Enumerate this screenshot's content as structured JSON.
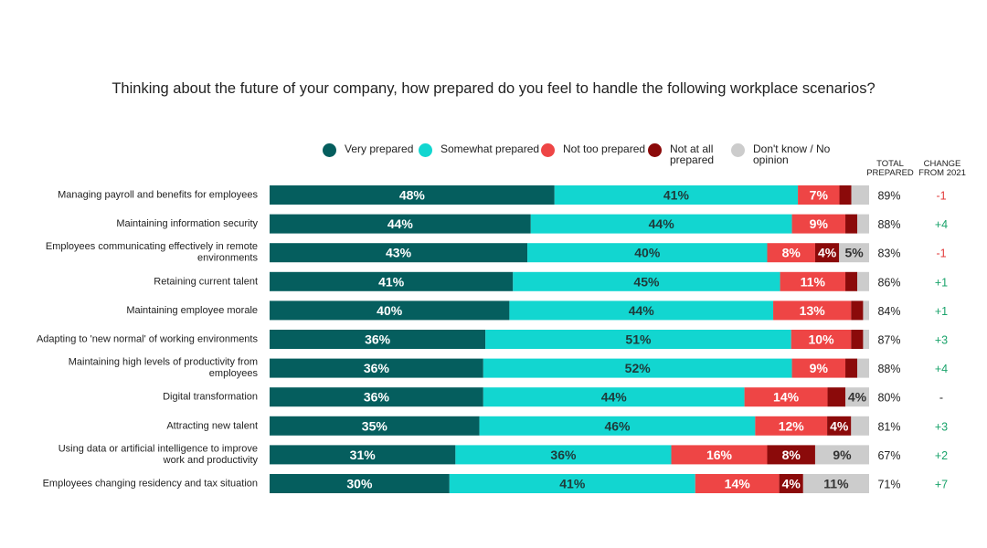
{
  "chart_data": {
    "type": "bar",
    "orientation": "horizontal",
    "stacked": true,
    "normalized": true,
    "title": "Thinking about the future of your company, how prepared do you feel to handle the following workplace scenarios?",
    "categories": [
      "Managing payroll and benefits for employees",
      "Maintaining information security",
      "Employees communicating effectively in remote environments",
      "Retaining current talent",
      "Maintaining employee morale",
      "Adapting to 'new normal' of working environments",
      "Maintaining high levels of productivity from employees",
      "Digital transformation",
      "Attracting new talent",
      "Using data or artificial intelligence to improve work and productivity",
      "Employees changing residency and tax situation"
    ],
    "series": [
      {
        "name": "Very prepared",
        "color": "#055e5e",
        "label_color": "#ffffff",
        "values": [
          48,
          44,
          43,
          41,
          40,
          36,
          36,
          36,
          35,
          31,
          30
        ]
      },
      {
        "name": "Somewhat prepared",
        "color": "#12d6d0",
        "label_color": "#1f3a3a",
        "values": [
          41,
          44,
          40,
          45,
          44,
          51,
          52,
          44,
          46,
          36,
          41
        ]
      },
      {
        "name": "Not too prepared",
        "color": "#ee4545",
        "label_color": "#ffffff",
        "values": [
          7,
          9,
          8,
          11,
          13,
          10,
          9,
          14,
          12,
          16,
          14
        ]
      },
      {
        "name": "Not at all prepared",
        "color": "#8b0a0a",
        "label_color": "#ffffff",
        "values": [
          2,
          2,
          4,
          2,
          2,
          2,
          2,
          3,
          4,
          8,
          4
        ]
      },
      {
        "name": "Don't know / No opinion",
        "color": "#cccccc",
        "label_color": "#333333",
        "values": [
          3,
          2,
          5,
          2,
          1,
          1,
          2,
          4,
          3,
          9,
          11
        ]
      }
    ],
    "value_labels": [
      [
        "48%",
        "41%",
        "7%",
        "",
        ""
      ],
      [
        "44%",
        "44%",
        "9%",
        "",
        ""
      ],
      [
        "43%",
        "40%",
        "8%",
        "4%",
        "5%"
      ],
      [
        "41%",
        "45%",
        "11%",
        "",
        ""
      ],
      [
        "40%",
        "44%",
        "13%",
        "",
        ""
      ],
      [
        "36%",
        "51%",
        "10%",
        "",
        ""
      ],
      [
        "36%",
        "52%",
        "9%",
        "",
        ""
      ],
      [
        "36%",
        "44%",
        "14%",
        "",
        "4%"
      ],
      [
        "35%",
        "46%",
        "12%",
        "4%",
        ""
      ],
      [
        "31%",
        "36%",
        "16%",
        "8%",
        "9%"
      ],
      [
        "30%",
        "41%",
        "14%",
        "4%",
        "11%"
      ]
    ],
    "total_prepared": [
      "89%",
      "88%",
      "83%",
      "86%",
      "84%",
      "87%",
      "88%",
      "80%",
      "81%",
      "67%",
      "71%"
    ],
    "change_from_2021": [
      "-1",
      "+4",
      "-1",
      "+1",
      "+1",
      "+3",
      "+4",
      "-",
      "+3",
      "+2",
      "+7"
    ],
    "change_colors": {
      "positive": "#1aa36b",
      "negative": "#e23b3b",
      "neutral": "#222222"
    },
    "legend_position": "top",
    "xlim": [
      0,
      100
    ]
  },
  "legend": [
    "Very prepared",
    "Somewhat prepared",
    "Not too prepared",
    "Not at all prepared",
    "Don't know / No opinion"
  ],
  "columns": {
    "total_header": "TOTAL PREPARED",
    "change_header": "CHANGE FROM 2021"
  }
}
